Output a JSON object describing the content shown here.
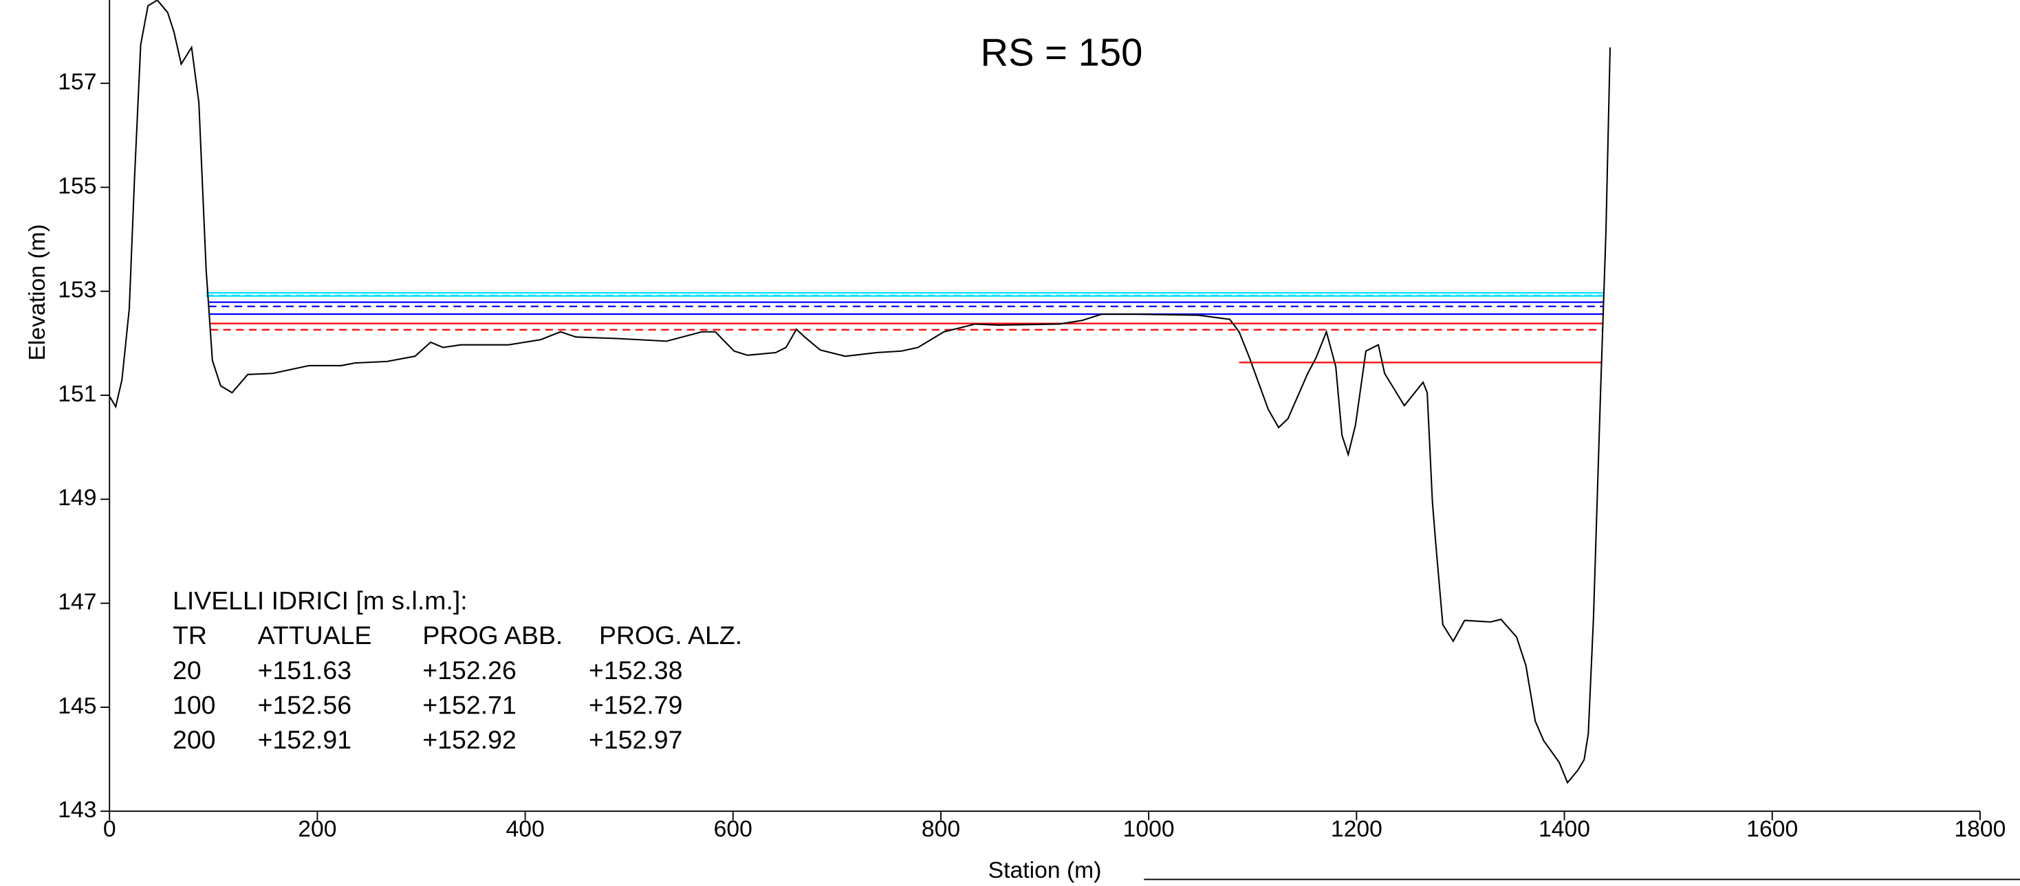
{
  "chart_data": {
    "type": "line",
    "title": "RS = 150",
    "x_label": "Station (m)",
    "y_label": "Elevation (m)",
    "xlim": [
      0,
      1800
    ],
    "xticks": [
      0,
      200,
      400,
      600,
      800,
      1000,
      1200,
      1400,
      1600,
      1800
    ],
    "ylim": [
      143,
      158.6
    ],
    "yticks": [
      143,
      145,
      147,
      149,
      151,
      153,
      155,
      157
    ],
    "x": [
      0,
      6,
      12,
      19,
      24,
      30,
      37,
      46,
      56,
      62,
      69,
      79,
      86,
      93,
      99,
      107,
      118,
      133,
      157,
      192,
      223,
      236,
      267,
      294,
      309,
      321,
      338,
      384,
      415,
      434,
      449,
      490,
      536,
      570,
      583,
      601,
      614,
      641,
      651,
      661,
      669,
      684,
      708,
      738,
      762,
      778,
      803,
      833,
      855,
      914,
      936,
      955,
      986,
      1048,
      1078,
      1087,
      1097,
      1115,
      1125,
      1134,
      1153,
      1161,
      1171,
      1180,
      1186,
      1192,
      1199,
      1209,
      1221,
      1227,
      1246,
      1264,
      1268,
      1273,
      1276,
      1283,
      1293,
      1304,
      1329,
      1339,
      1354,
      1363,
      1372,
      1380,
      1395,
      1403,
      1413,
      1419,
      1423,
      1428,
      1435,
      1440,
      1444
    ],
    "series": [
      {
        "color": "#000000",
        "values": [
          150.98,
          150.78,
          151.3,
          152.66,
          155.14,
          157.74,
          158.49,
          158.6,
          158.36,
          157.99,
          157.37,
          157.69,
          156.63,
          153.41,
          151.67,
          151.18,
          151.05,
          151.4,
          151.42,
          151.57,
          151.57,
          151.62,
          151.65,
          151.75,
          152.02,
          151.92,
          151.97,
          151.97,
          152.07,
          152.22,
          152.12,
          152.09,
          152.04,
          152.22,
          152.22,
          151.85,
          151.77,
          151.82,
          151.92,
          152.27,
          152.12,
          151.87,
          151.75,
          151.82,
          151.85,
          151.92,
          152.22,
          152.37,
          152.35,
          152.37,
          152.44,
          152.56,
          152.56,
          152.54,
          152.46,
          152.22,
          151.72,
          150.73,
          150.38,
          150.55,
          151.42,
          151.72,
          152.22,
          151.55,
          150.23,
          149.86,
          150.43,
          151.85,
          151.97,
          151.42,
          150.8,
          151.25,
          151.05,
          148.95,
          148.2,
          146.59,
          146.27,
          146.67,
          146.64,
          146.69,
          146.35,
          145.8,
          144.73,
          144.36,
          143.94,
          143.55,
          143.79,
          143.99,
          144.49,
          146.72,
          151.18,
          154.15,
          157.69
        ]
      }
    ],
    "water_levels": {
      "title": "LIVELLI IDRICI [m s.l.m.]:",
      "columns": [
        "TR",
        "ATTUALE",
        "PROG ABB.",
        "PROG. ALZ."
      ],
      "dashed": [
        false,
        true,
        false
      ],
      "rows": [
        {
          "tr": 20,
          "values": [
            151.63,
            152.26,
            152.38
          ],
          "value_labels": [
            "+151.63",
            "+152.26",
            "+152.38"
          ],
          "colors": [
            "#ff0000",
            "#ff0000",
            "#ff0000"
          ]
        },
        {
          "tr": 100,
          "values": [
            152.56,
            152.71,
            152.79
          ],
          "value_labels": [
            "+152.56",
            "+152.71",
            "+152.79"
          ],
          "colors": [
            "#0000ff",
            "#0000ff",
            "#0000ff"
          ]
        },
        {
          "tr": 200,
          "values": [
            152.91,
            152.92,
            152.97
          ],
          "value_labels": [
            "+152.91",
            "+152.92",
            "+152.97"
          ],
          "colors": [
            "#00e0ff",
            "#00e0ff",
            "#00e0ff"
          ]
        }
      ]
    }
  }
}
